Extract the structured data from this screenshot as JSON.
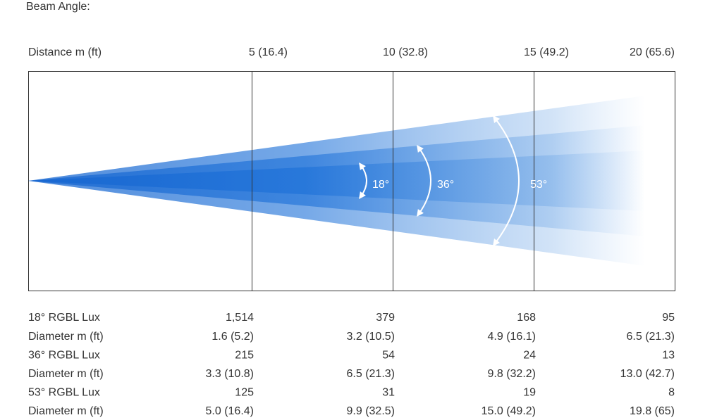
{
  "header": {
    "title": "Beam Angle:"
  },
  "distance": {
    "label": "Distance m (ft)",
    "columns": [
      "5 (16.4)",
      "10 (32.8)",
      "15 (49.2)",
      "20 (65.6)"
    ]
  },
  "angles": [
    "18°",
    "36°",
    "53°"
  ],
  "table": {
    "rows": [
      [
        "18° RGBL Lux",
        "1,514",
        "379",
        "168",
        "95"
      ],
      [
        "Diameter m (ft)",
        "1.6 (5.2)",
        "3.2 (10.5)",
        "4.9 (16.1)",
        "6.5 (21.3)"
      ],
      [
        "36° RGBL Lux",
        "215",
        "54",
        "24",
        "13"
      ],
      [
        "Diameter m (ft)",
        "3.3 (10.8)",
        "6.5 (21.3)",
        "9.8 (32.2)",
        "13.0 (42.7)"
      ],
      [
        "53° RGBL Lux",
        "125",
        "31",
        "19",
        "8"
      ],
      [
        "Diameter m (ft)",
        "5.0 (16.4)",
        "9.9 (32.5)",
        "15.0 (49.2)",
        "19.8 (65)"
      ]
    ]
  }
}
